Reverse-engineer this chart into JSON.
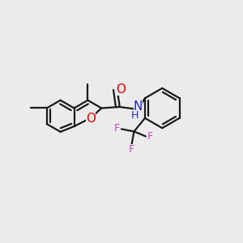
{
  "background_color": "#ebebeb",
  "bond_color": "#1a1a1a",
  "bond_width": 1.6,
  "figsize": [
    3.0,
    3.0
  ],
  "dpi": 100,
  "atom_colors": {
    "O": "#dd0000",
    "N": "#2222cc",
    "H": "#2222cc",
    "F": "#cc44bb",
    "C": "#1a1a1a"
  },
  "font_size_heavy": 11,
  "font_size_small": 9
}
